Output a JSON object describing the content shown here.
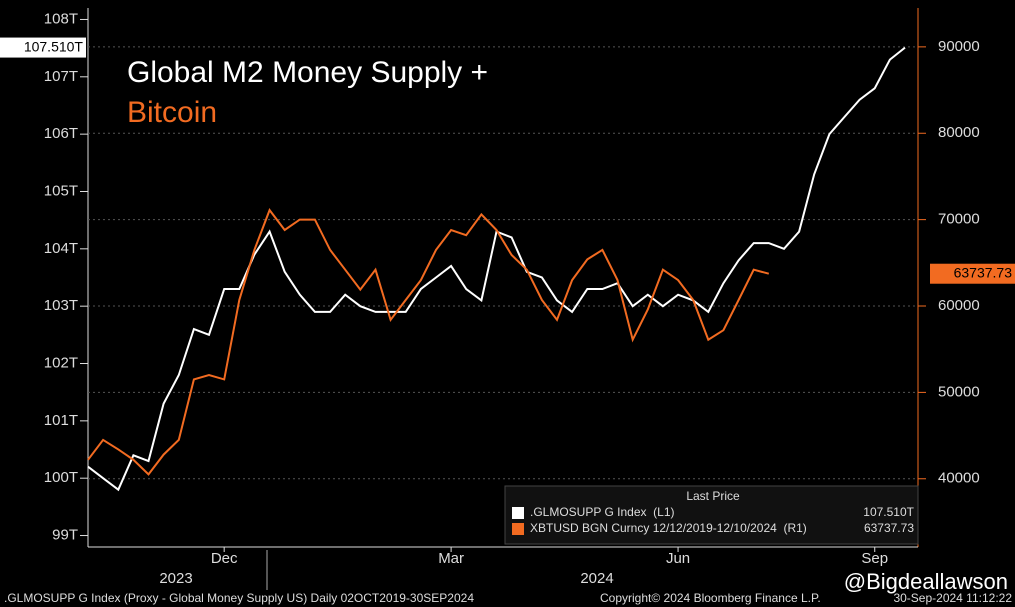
{
  "chart_data": {
    "type": "line",
    "title": "Global M2 Money Supply +",
    "subtitle": "Bitcoin",
    "categories": [
      null,
      null,
      null,
      null,
      null,
      null,
      null,
      null,
      null,
      "Dec",
      null,
      null,
      null,
      null,
      null,
      null,
      null,
      null,
      null,
      null,
      null,
      null,
      null,
      null,
      "Mar",
      null,
      null,
      null,
      null,
      null,
      null,
      null,
      null,
      null,
      null,
      null,
      null,
      null,
      null,
      "Jun",
      null,
      null,
      null,
      null,
      null,
      null,
      null,
      null,
      null,
      null,
      null,
      null,
      "Sep",
      null,
      null
    ],
    "year_labels": [
      "2023",
      "2024"
    ],
    "series": [
      {
        "name": ".GLMOSUPP G Index  (L1)",
        "color": "#ffffff",
        "last_label": "107.510T",
        "values": [
          100.2,
          100.0,
          99.8,
          100.4,
          100.3,
          101.3,
          101.8,
          102.6,
          102.5,
          103.3,
          103.3,
          103.9,
          104.3,
          103.6,
          103.2,
          102.9,
          102.9,
          103.2,
          103.0,
          102.9,
          102.9,
          102.9,
          103.3,
          103.5,
          103.7,
          103.3,
          103.1,
          104.3,
          104.2,
          103.6,
          103.5,
          103.1,
          102.9,
          103.3,
          103.3,
          103.4,
          103.0,
          103.2,
          103.0,
          103.2,
          103.1,
          102.9,
          103.4,
          103.8,
          104.1,
          104.1,
          104.0,
          104.3,
          105.3,
          106.0,
          106.3,
          106.6,
          106.8,
          107.3,
          107.51
        ]
      },
      {
        "name": "XBTUSD BGN Curncy 12/12/2019-12/10/2024  (R1)",
        "color": "#f26b21",
        "axis": "y2",
        "last_label": "63737.73",
        "values": [
          42200,
          44500,
          43400,
          42200,
          40500,
          42800,
          44500,
          51500,
          52000,
          51500,
          60700,
          66500,
          71100,
          68800,
          70000,
          70000,
          66500,
          64200,
          61900,
          64200,
          58400,
          60700,
          63000,
          66500,
          68800,
          68200,
          70600,
          68800,
          65900,
          64200,
          60700,
          58400,
          63000,
          65400,
          66500,
          63000,
          56100,
          59600,
          64200,
          63000,
          60700,
          56100,
          57200,
          60700,
          64200,
          63737.73,
          null,
          null,
          null,
          null,
          null,
          null,
          null,
          null,
          null
        ]
      }
    ],
    "ylim": [
      98.8,
      108.2
    ],
    "yticks": [
      {
        "value": 99,
        "label": "99T"
      },
      {
        "value": 100,
        "label": "100T"
      },
      {
        "value": 101,
        "label": "101T"
      },
      {
        "value": 102,
        "label": "102T"
      },
      {
        "value": 103,
        "label": "103T"
      },
      {
        "value": 104,
        "label": "104T"
      },
      {
        "value": 105,
        "label": "105T"
      },
      {
        "value": 106,
        "label": "106T"
      },
      {
        "value": 107,
        "label": "107T"
      },
      {
        "value": 108,
        "label": "108T"
      }
    ],
    "y2lim": [
      32100,
      94500
    ],
    "y2ticks": [
      40000,
      50000,
      60000,
      70000,
      80000,
      90000
    ],
    "grid": true,
    "legend_title": "Last Price",
    "footer_left": ".GLMOSUPP G Index (Proxy - Global Money Supply US)  Daily 02OCT2019-30SEP2024",
    "footer_right": "Copyright© 2024 Bloomberg Finance L.P.",
    "timestamp": "30-Sep-2024 11:12:22",
    "watermark": "@Bigdeallawson"
  }
}
